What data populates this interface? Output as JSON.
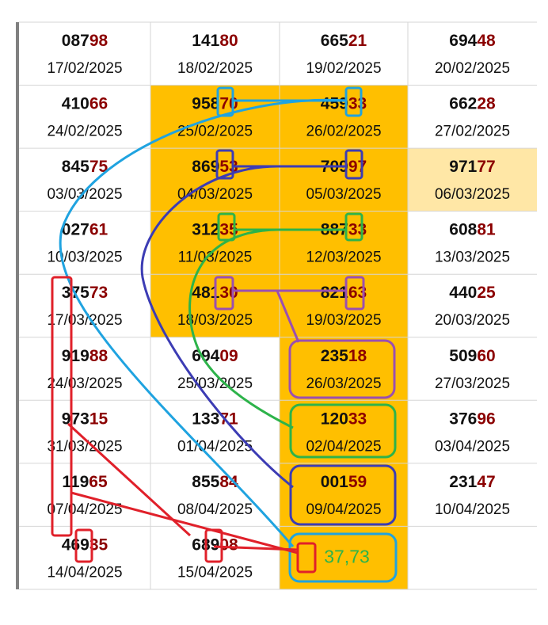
{
  "table": {
    "rows": [
      [
        {
          "lead": "087",
          "end": "98",
          "date": "17/02/2025"
        },
        {
          "lead": "141",
          "end": "80",
          "date": "18/02/2025"
        },
        {
          "lead": "665",
          "end": "21",
          "date": "19/02/2025"
        },
        {
          "lead": "694",
          "end": "48",
          "date": "20/02/2025"
        }
      ],
      [
        {
          "lead": "410",
          "end": "66",
          "date": "24/02/2025"
        },
        {
          "lead": "958",
          "end": "70",
          "date": "25/02/2025"
        },
        {
          "lead": "459",
          "end": "33",
          "date": "26/02/2025"
        },
        {
          "lead": "662",
          "end": "28",
          "date": "27/02/2025"
        }
      ],
      [
        {
          "lead": "845",
          "end": "75",
          "date": "03/03/2025"
        },
        {
          "lead": "869",
          "end": "53",
          "date": "04/03/2025"
        },
        {
          "lead": "709",
          "end": "97",
          "date": "05/03/2025"
        },
        {
          "lead": "971",
          "end": "77",
          "date": "06/03/2025"
        }
      ],
      [
        {
          "lead": "027",
          "end": "61",
          "date": "10/03/2025"
        },
        {
          "lead": "312",
          "end": "35",
          "date": "11/03/2025"
        },
        {
          "lead": "887",
          "end": "33",
          "date": "12/03/2025"
        },
        {
          "lead": "608",
          "end": "81",
          "date": "13/03/2025"
        }
      ],
      [
        {
          "lead": "375",
          "end": "73",
          "date": "17/03/2025"
        },
        {
          "lead": "481",
          "end": "30",
          "date": "18/03/2025"
        },
        {
          "lead": "821",
          "end": "63",
          "date": "19/03/2025"
        },
        {
          "lead": "440",
          "end": "25",
          "date": "20/03/2025"
        }
      ],
      [
        {
          "lead": "919",
          "end": "88",
          "date": "24/03/2025"
        },
        {
          "lead": "694",
          "end": "09",
          "date": "25/03/2025"
        },
        {
          "lead": "235",
          "end": "18",
          "date": "26/03/2025"
        },
        {
          "lead": "509",
          "end": "60",
          "date": "27/03/2025"
        }
      ],
      [
        {
          "lead": "973",
          "end": "15",
          "date": "31/03/2025"
        },
        {
          "lead": "133",
          "end": "71",
          "date": "01/04/2025"
        },
        {
          "lead": "120",
          "end": "33",
          "date": "02/04/2025"
        },
        {
          "lead": "376",
          "end": "96",
          "date": "03/04/2025"
        }
      ],
      [
        {
          "lead": "119",
          "end": "65",
          "date": "07/04/2025"
        },
        {
          "lead": "855",
          "end": "84",
          "date": "08/04/2025"
        },
        {
          "lead": "001",
          "end": "59",
          "date": "09/04/2025"
        },
        {
          "lead": "231",
          "end": "47",
          "date": "10/04/2025"
        }
      ],
      [
        {
          "lead": "469",
          "end": "35",
          "date": "14/04/2025"
        },
        {
          "lead": "689",
          "end": "08",
          "date": "15/04/2025"
        },
        {
          "prediction": "37,73"
        }
      ]
    ]
  }
}
